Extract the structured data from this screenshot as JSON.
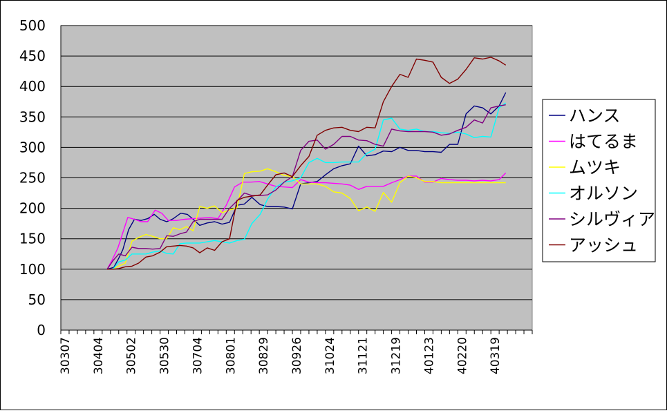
{
  "chart_data": {
    "type": "line",
    "title": "",
    "xlabel": "",
    "ylabel": "",
    "ylim": [
      0,
      500
    ],
    "yticks": [
      0,
      50,
      100,
      150,
      200,
      250,
      300,
      350,
      400,
      450,
      500
    ],
    "grid": true,
    "legend_position": "right",
    "plot_background": "#C0C0C0",
    "xtick_labels": [
      "30307",
      "30404",
      "30502",
      "30530",
      "30704",
      "30801",
      "30829",
      "30926",
      "31024",
      "31121",
      "31219",
      "40123",
      "40220",
      "40319"
    ],
    "series": [
      {
        "name": "ハンス",
        "color": "#000080",
        "points": [
          [
            5.6,
            100
          ],
          [
            6.4,
            103
          ],
          [
            7.0,
            118
          ],
          [
            7.5,
            132
          ],
          [
            8.2,
            165
          ],
          [
            8.9,
            182
          ],
          [
            9.7,
            180
          ],
          [
            10.5,
            183
          ],
          [
            11.3,
            190
          ],
          [
            12.0,
            182
          ],
          [
            12.8,
            178
          ],
          [
            13.6,
            183
          ],
          [
            14.5,
            192
          ],
          [
            15.3,
            190
          ],
          [
            16.0,
            182
          ],
          [
            16.8,
            172
          ],
          [
            17.7,
            176
          ],
          [
            18.6,
            178
          ],
          [
            19.5,
            174
          ],
          [
            20.4,
            177
          ],
          [
            21.3,
            205
          ],
          [
            22.2,
            207
          ],
          [
            23.1,
            218
          ],
          [
            24.1,
            206
          ],
          [
            25.0,
            203
          ],
          [
            26.0,
            203
          ],
          [
            27.0,
            202
          ],
          [
            28.0,
            199
          ],
          [
            29.0,
            240
          ],
          [
            30.0,
            242
          ],
          [
            31.0,
            244
          ],
          [
            32.0,
            255
          ],
          [
            33.0,
            265
          ],
          [
            34.0,
            270
          ],
          [
            35.0,
            273
          ],
          [
            36.0,
            302
          ],
          [
            37.0,
            286
          ],
          [
            38.0,
            288
          ],
          [
            39.0,
            294
          ],
          [
            40.0,
            293
          ],
          [
            41.0,
            300
          ],
          [
            42.0,
            295
          ],
          [
            43.0,
            295
          ],
          [
            44.0,
            293
          ],
          [
            45.0,
            293
          ],
          [
            46.0,
            292
          ],
          [
            47.0,
            305
          ],
          [
            48.0,
            305
          ],
          [
            49.0,
            355
          ],
          [
            50.0,
            368
          ],
          [
            51.0,
            365
          ],
          [
            52.0,
            355
          ],
          [
            53.0,
            368
          ],
          [
            53.8,
            390
          ]
        ]
      },
      {
        "name": "はてるま",
        "color": "#FF00FF",
        "points": [
          [
            5.6,
            100
          ],
          [
            6.2,
            115
          ],
          [
            6.9,
            135
          ],
          [
            7.5,
            160
          ],
          [
            8.1,
            185
          ],
          [
            8.9,
            182
          ],
          [
            9.7,
            178
          ],
          [
            10.5,
            178
          ],
          [
            11.4,
            197
          ],
          [
            12.2,
            192
          ],
          [
            13.0,
            180
          ],
          [
            14.0,
            180
          ],
          [
            15.0,
            182
          ],
          [
            16.0,
            183
          ],
          [
            17.0,
            184
          ],
          [
            18.0,
            185
          ],
          [
            19.0,
            183
          ],
          [
            20.0,
            205
          ],
          [
            21.0,
            235
          ],
          [
            22.0,
            243
          ],
          [
            23.0,
            243
          ],
          [
            24.0,
            244
          ],
          [
            25.0,
            240
          ],
          [
            26.0,
            236
          ],
          [
            27.0,
            235
          ],
          [
            28.0,
            234
          ],
          [
            29.0,
            247
          ],
          [
            30.0,
            243
          ],
          [
            31.0,
            242
          ],
          [
            32.0,
            242
          ],
          [
            33.0,
            241
          ],
          [
            34.0,
            240
          ],
          [
            35.0,
            238
          ],
          [
            36.0,
            231
          ],
          [
            37.0,
            236
          ],
          [
            38.0,
            236
          ],
          [
            39.0,
            236
          ],
          [
            40.0,
            242
          ],
          [
            41.0,
            247
          ],
          [
            42.0,
            253
          ],
          [
            43.0,
            253
          ],
          [
            44.0,
            243
          ],
          [
            45.0,
            243
          ],
          [
            46.0,
            249
          ],
          [
            47.0,
            247
          ],
          [
            48.0,
            246
          ],
          [
            49.0,
            246
          ],
          [
            50.0,
            245
          ],
          [
            51.0,
            246
          ],
          [
            52.0,
            245
          ],
          [
            53.0,
            247
          ],
          [
            53.8,
            258
          ]
        ]
      },
      {
        "name": "ムツキ",
        "color": "#FFFF00",
        "points": [
          [
            5.6,
            100
          ],
          [
            6.2,
            100
          ],
          [
            7.0,
            105
          ],
          [
            7.8,
            110
          ],
          [
            8.6,
            146
          ],
          [
            9.4,
            152
          ],
          [
            10.3,
            157
          ],
          [
            11.1,
            154
          ],
          [
            12.0,
            150
          ],
          [
            12.8,
            150
          ],
          [
            13.6,
            168
          ],
          [
            14.4,
            165
          ],
          [
            15.2,
            170
          ],
          [
            16.0,
            163
          ],
          [
            16.8,
            203
          ],
          [
            17.7,
            200
          ],
          [
            18.6,
            204
          ],
          [
            19.5,
            193
          ],
          [
            20.4,
            197
          ],
          [
            21.3,
            201
          ],
          [
            22.2,
            257
          ],
          [
            23.1,
            260
          ],
          [
            24.1,
            261
          ],
          [
            25.0,
            265
          ],
          [
            26.0,
            260
          ],
          [
            27.0,
            254
          ],
          [
            28.0,
            252
          ],
          [
            29.0,
            240
          ],
          [
            30.0,
            240
          ],
          [
            31.0,
            240
          ],
          [
            32.0,
            236
          ],
          [
            33.0,
            227
          ],
          [
            34.0,
            225
          ],
          [
            35.0,
            216
          ],
          [
            36.0,
            196
          ],
          [
            37.0,
            202
          ],
          [
            38.0,
            195
          ],
          [
            39.0,
            226
          ],
          [
            40.0,
            210
          ],
          [
            41.0,
            242
          ],
          [
            42.0,
            253
          ],
          [
            43.0,
            250
          ],
          [
            44.0,
            244
          ],
          [
            45.0,
            244
          ],
          [
            46.0,
            242
          ],
          [
            47.0,
            242
          ],
          [
            48.0,
            242
          ],
          [
            49.0,
            242
          ],
          [
            50.0,
            242
          ],
          [
            51.0,
            242
          ],
          [
            52.0,
            242
          ],
          [
            53.0,
            242
          ],
          [
            53.8,
            242
          ]
        ]
      },
      {
        "name": "オルソン",
        "color": "#00FFFF",
        "points": [
          [
            5.6,
            100
          ],
          [
            6.3,
            100
          ],
          [
            7.0,
            112
          ],
          [
            7.8,
            115
          ],
          [
            8.6,
            125
          ],
          [
            9.4,
            125
          ],
          [
            10.3,
            125
          ],
          [
            11.1,
            128
          ],
          [
            12.0,
            130
          ],
          [
            12.8,
            126
          ],
          [
            13.6,
            125
          ],
          [
            14.4,
            142
          ],
          [
            15.2,
            143
          ],
          [
            16.0,
            143
          ],
          [
            16.8,
            143
          ],
          [
            17.7,
            145
          ],
          [
            18.6,
            147
          ],
          [
            19.5,
            145
          ],
          [
            20.4,
            143
          ],
          [
            21.3,
            147
          ],
          [
            22.2,
            149
          ],
          [
            23.1,
            175
          ],
          [
            24.1,
            190
          ],
          [
            25.0,
            215
          ],
          [
            26.0,
            235
          ],
          [
            27.0,
            243
          ],
          [
            28.0,
            245
          ],
          [
            29.0,
            250
          ],
          [
            30.0,
            275
          ],
          [
            31.0,
            282
          ],
          [
            32.0,
            275
          ],
          [
            33.0,
            275
          ],
          [
            34.0,
            276
          ],
          [
            35.0,
            276
          ],
          [
            36.0,
            276
          ],
          [
            37.0,
            290
          ],
          [
            38.0,
            297
          ],
          [
            39.0,
            345
          ],
          [
            40.0,
            348
          ],
          [
            41.0,
            330
          ],
          [
            42.0,
            328
          ],
          [
            43.0,
            330
          ],
          [
            44.0,
            326
          ],
          [
            45.0,
            326
          ],
          [
            46.0,
            324
          ],
          [
            47.0,
            323
          ],
          [
            48.0,
            325
          ],
          [
            49.0,
            322
          ],
          [
            50.0,
            316
          ],
          [
            51.0,
            318
          ],
          [
            52.0,
            317
          ],
          [
            53.0,
            365
          ],
          [
            53.8,
            373
          ]
        ]
      },
      {
        "name": "シルヴィア",
        "color": "#800080",
        "points": [
          [
            5.6,
            100
          ],
          [
            6.3,
            114
          ],
          [
            7.0,
            125
          ],
          [
            7.8,
            122
          ],
          [
            8.6,
            136
          ],
          [
            9.4,
            134
          ],
          [
            10.3,
            134
          ],
          [
            11.1,
            133
          ],
          [
            12.0,
            134
          ],
          [
            12.8,
            155
          ],
          [
            13.6,
            154
          ],
          [
            14.4,
            158
          ],
          [
            15.2,
            161
          ],
          [
            16.0,
            178
          ],
          [
            16.8,
            182
          ],
          [
            17.7,
            182
          ],
          [
            18.6,
            182
          ],
          [
            19.5,
            182
          ],
          [
            20.4,
            200
          ],
          [
            21.3,
            212
          ],
          [
            22.2,
            225
          ],
          [
            23.1,
            221
          ],
          [
            24.1,
            221
          ],
          [
            25.0,
            222
          ],
          [
            26.0,
            230
          ],
          [
            27.0,
            243
          ],
          [
            28.0,
            252
          ],
          [
            29.0,
            295
          ],
          [
            30.0,
            310
          ],
          [
            31.0,
            312
          ],
          [
            32.0,
            297
          ],
          [
            33.0,
            305
          ],
          [
            34.0,
            318
          ],
          [
            35.0,
            318
          ],
          [
            36.0,
            312
          ],
          [
            37.0,
            311
          ],
          [
            38.0,
            305
          ],
          [
            39.0,
            302
          ],
          [
            40.0,
            330
          ],
          [
            41.0,
            327
          ],
          [
            42.0,
            326
          ],
          [
            43.0,
            326
          ],
          [
            44.0,
            326
          ],
          [
            45.0,
            325
          ],
          [
            46.0,
            320
          ],
          [
            47.0,
            322
          ],
          [
            48.0,
            328
          ],
          [
            49.0,
            333
          ],
          [
            50.0,
            345
          ],
          [
            51.0,
            340
          ],
          [
            52.0,
            365
          ],
          [
            53.0,
            368
          ],
          [
            53.8,
            370
          ]
        ]
      },
      {
        "name": "アッシュ",
        "color": "#800000",
        "points": [
          [
            5.6,
            100
          ],
          [
            6.3,
            100
          ],
          [
            7.0,
            101
          ],
          [
            7.8,
            104
          ],
          [
            8.6,
            105
          ],
          [
            9.4,
            110
          ],
          [
            10.3,
            120
          ],
          [
            11.1,
            122
          ],
          [
            12.0,
            128
          ],
          [
            12.8,
            137
          ],
          [
            13.6,
            138
          ],
          [
            14.4,
            139
          ],
          [
            15.2,
            138
          ],
          [
            16.0,
            135
          ],
          [
            16.8,
            127
          ],
          [
            17.7,
            135
          ],
          [
            18.6,
            131
          ],
          [
            19.5,
            145
          ],
          [
            20.4,
            150
          ],
          [
            21.3,
            213
          ],
          [
            22.2,
            218
          ],
          [
            23.1,
            220
          ],
          [
            24.1,
            222
          ],
          [
            25.0,
            238
          ],
          [
            26.0,
            255
          ],
          [
            27.0,
            258
          ],
          [
            28.0,
            252
          ],
          [
            29.0,
            270
          ],
          [
            30.0,
            285
          ],
          [
            31.0,
            320
          ],
          [
            32.0,
            328
          ],
          [
            33.0,
            332
          ],
          [
            34.0,
            333
          ],
          [
            35.0,
            328
          ],
          [
            36.0,
            326
          ],
          [
            37.0,
            333
          ],
          [
            38.0,
            332
          ],
          [
            39.0,
            375
          ],
          [
            40.0,
            400
          ],
          [
            41.0,
            420
          ],
          [
            42.0,
            415
          ],
          [
            43.0,
            445
          ],
          [
            44.0,
            443
          ],
          [
            45.0,
            440
          ],
          [
            46.0,
            415
          ],
          [
            47.0,
            405
          ],
          [
            48.0,
            412
          ],
          [
            49.0,
            428
          ],
          [
            50.0,
            447
          ],
          [
            51.0,
            445
          ],
          [
            52.0,
            448
          ],
          [
            53.0,
            442
          ],
          [
            53.8,
            435
          ]
        ]
      }
    ]
  }
}
